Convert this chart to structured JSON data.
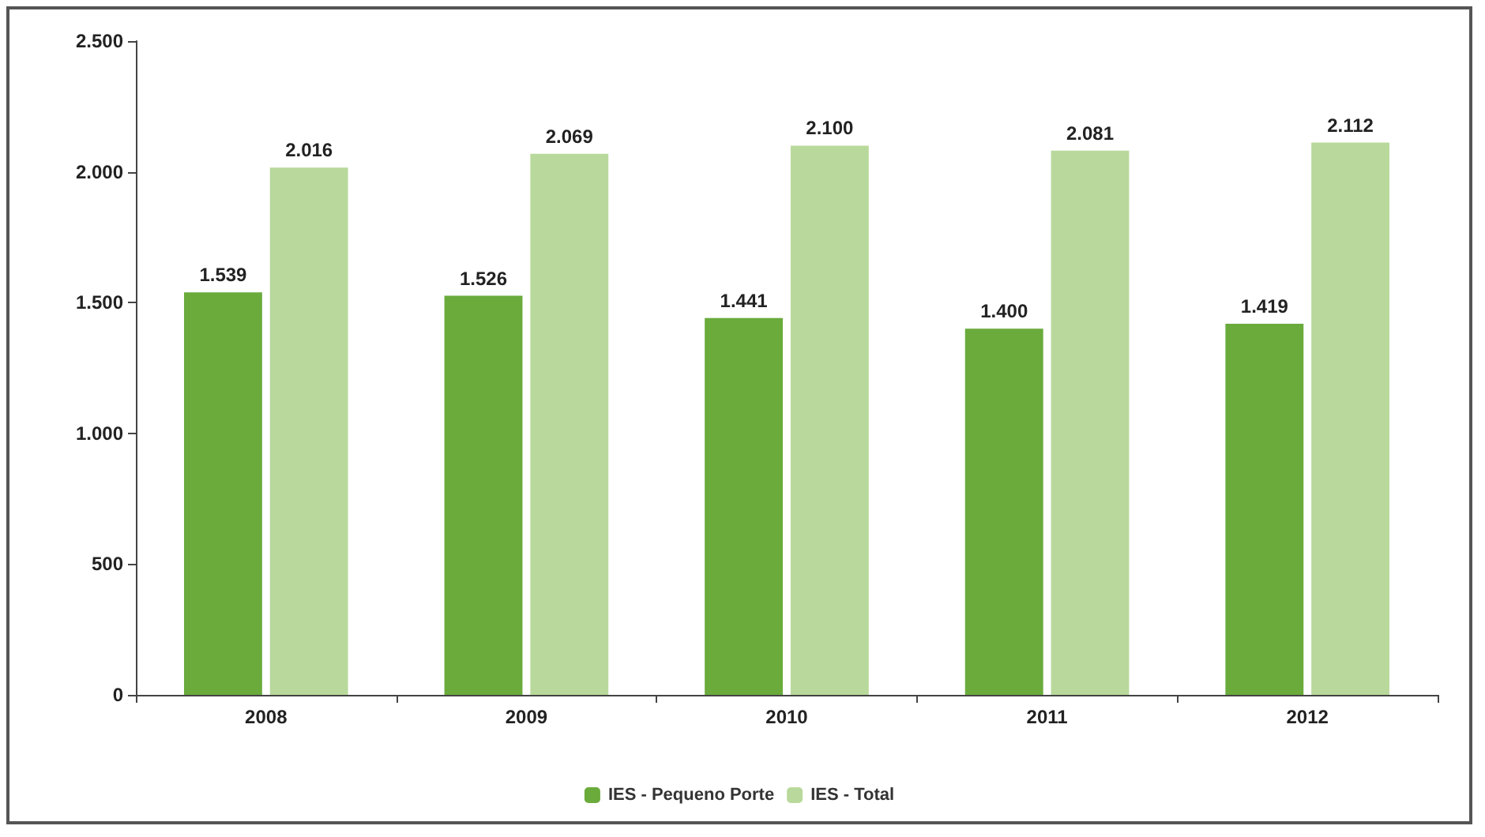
{
  "chart_data": {
    "type": "bar",
    "categories": [
      "2008",
      "2009",
      "2010",
      "2011",
      "2012"
    ],
    "series": [
      {
        "name": "IES - Pequeno Porte",
        "color": "#6aab3c",
        "values": [
          1539,
          1526,
          1441,
          1400,
          1419
        ],
        "value_labels": [
          "1.539",
          "1.526",
          "1.441",
          "1.400",
          "1.419"
        ]
      },
      {
        "name": "IES - Total",
        "color": "#b9d99c",
        "values": [
          2016,
          2069,
          2100,
          2081,
          2112
        ],
        "value_labels": [
          "2.016",
          "2.069",
          "2.100",
          "2.081",
          "2.112"
        ]
      }
    ],
    "ylim": [
      0,
      2500
    ],
    "yticks": [
      0,
      500,
      {
        "value": 1000,
        "label": "1.000"
      },
      {
        "value": 1500,
        "label": "1.500"
      },
      {
        "value": 2000,
        "label": "2.000"
      },
      {
        "value": 2500,
        "label": "2.500"
      }
    ],
    "grid": false,
    "legend": "bottom"
  }
}
